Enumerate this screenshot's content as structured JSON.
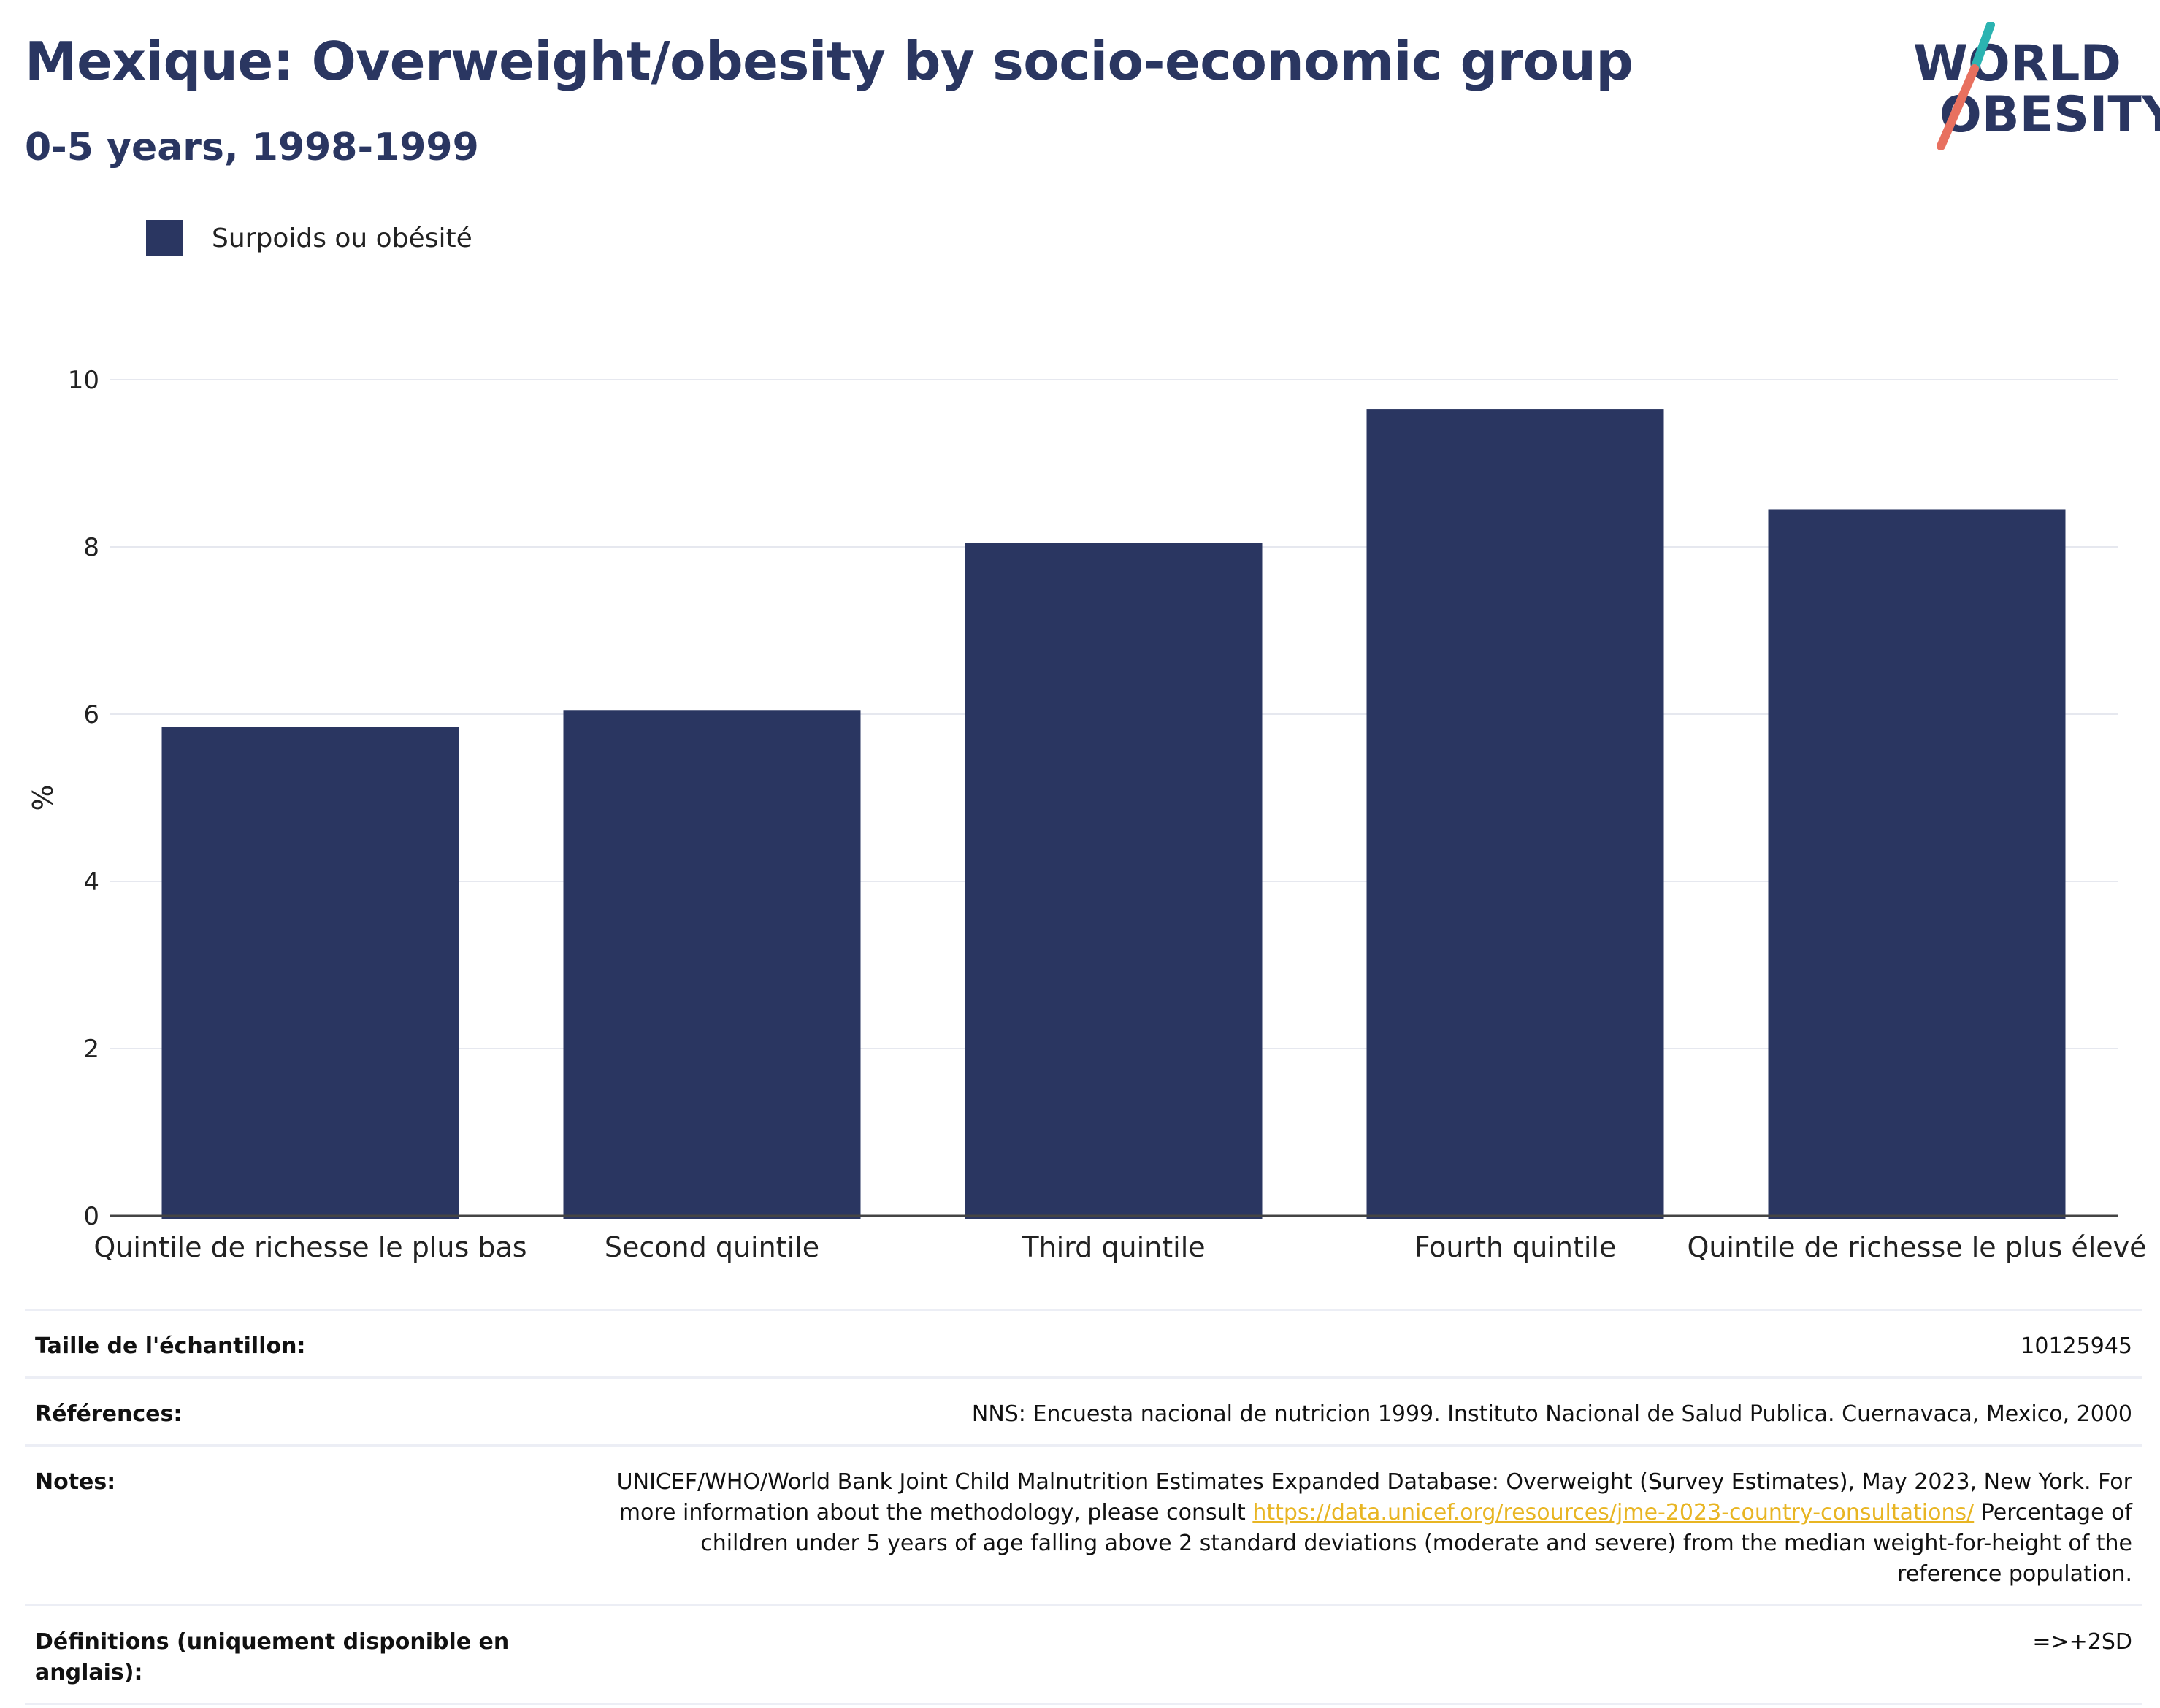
{
  "header": {
    "title": "Mexique: Overweight/obesity by socio-economic group",
    "subtitle": "0-5 years, 1998-1999"
  },
  "logo": {
    "line1": "WORLD",
    "line2": "OBESITY",
    "accent_teal": "#2bb3b1",
    "accent_coral": "#e8705f"
  },
  "colors": {
    "bar": "#2a3661",
    "grid": "#e6e8ef",
    "axis": "#444444"
  },
  "chart_data": {
    "type": "bar",
    "categories": [
      "Quintile de richesse le plus bas",
      "Second quintile",
      "Third quintile",
      "Fourth quintile",
      "Quintile de richesse le plus élevé"
    ],
    "series": [
      {
        "name": "Surpoids ou obésité",
        "values": [
          5.85,
          6.05,
          8.05,
          9.65,
          8.45
        ]
      }
    ],
    "ylabel": "%",
    "ylim": [
      0,
      10
    ],
    "yticks": [
      0,
      2,
      4,
      6,
      8,
      10
    ],
    "grid": true,
    "legend": "top-left"
  },
  "table": {
    "rows": [
      {
        "key": "Taille de l'échantillon:",
        "value": "10125945"
      },
      {
        "key": "Références:",
        "value": "NNS: Encuesta nacional de nutricion 1999. Instituto Nacional de Salud Publica. Cuernavaca, Mexico, 2000"
      },
      {
        "key": "Notes:",
        "value_pre": "UNICEF/WHO/World Bank Joint Child Malnutrition Estimates Expanded Database: Overweight (Survey Estimates), May 2023, New York. For more information about the methodology, please consult ",
        "link": "https://data.unicef.org/resources/jme-2023-country-consultations/",
        "value_post": " Percentage of children under 5 years of age falling above 2 standard deviations (moderate and severe) from the median weight-for-height of the reference population."
      },
      {
        "key": "Définitions (uniquement disponible en anglais):",
        "value": "=>+2SD"
      }
    ]
  }
}
